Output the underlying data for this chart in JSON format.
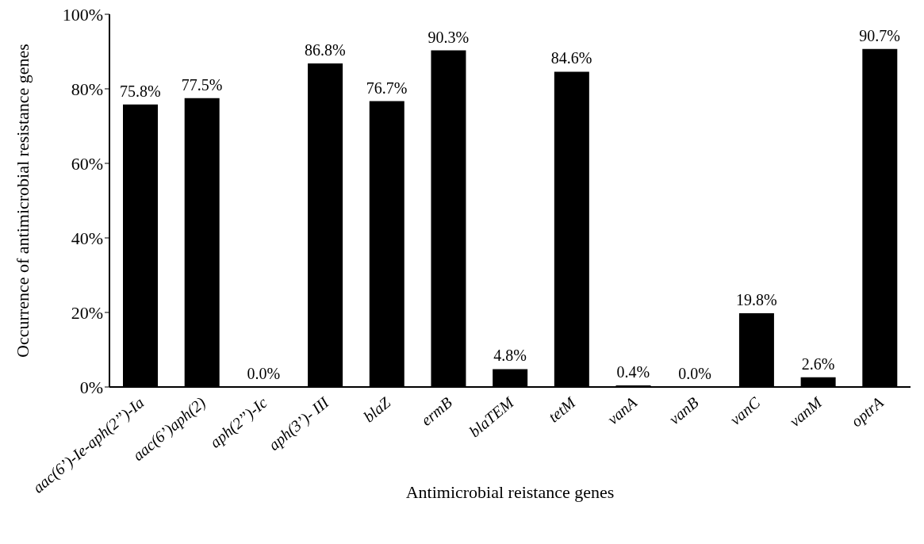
{
  "chart_data": {
    "type": "bar",
    "xlabel": "Antimicrobial reistance genes",
    "ylabel": "Occurrence of antimicrobial resistance genes",
    "categories": [
      "aac(6’)-Ie-aph(2’’)-Ia",
      "aac(6’)aph(2)",
      "aph(2’’)-Ic",
      "aph(3’)- III",
      "blaZ",
      "ermB",
      "blaTEM",
      "tetM",
      "vanA",
      "vanB",
      "vanC",
      "vanM",
      "optrA"
    ],
    "values": [
      75.8,
      77.5,
      0.0,
      86.8,
      76.7,
      90.3,
      4.8,
      84.6,
      0.4,
      0.0,
      19.8,
      2.6,
      90.7
    ],
    "value_labels": [
      "75.8%",
      "77.5%",
      "0.0%",
      "86.8%",
      "76.7%",
      "90.3%",
      "4.8%",
      "84.6%",
      "0.4%",
      "0.0%",
      "19.8%",
      "2.6%",
      "90.7%"
    ],
    "color": "#000000",
    "ylim": [
      0,
      100
    ],
    "yticks": [
      {
        "value": 0,
        "label": "0%"
      },
      {
        "value": 20,
        "label": "20%"
      },
      {
        "value": 40,
        "label": "40%"
      },
      {
        "value": 60,
        "label": "60%"
      },
      {
        "value": 80,
        "label": "80%"
      },
      {
        "value": 100,
        "label": "100%"
      }
    ],
    "grid": false,
    "legend": false
  }
}
